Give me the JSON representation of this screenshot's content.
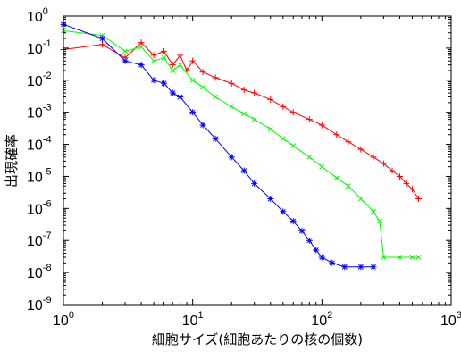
{
  "chart_data": {
    "type": "line",
    "title": "",
    "xlabel": "細胞サイズ(細胞あたりの核の個数)",
    "ylabel": "出現確率",
    "x_scale": "log",
    "y_scale": "log",
    "xlim": [
      1,
      1000
    ],
    "ylim": [
      1e-09,
      1
    ],
    "x_ticks": [
      {
        "value": 1,
        "base": "10",
        "exp": "0"
      },
      {
        "value": 10,
        "base": "10",
        "exp": "1"
      },
      {
        "value": 100,
        "base": "10",
        "exp": "2"
      },
      {
        "value": 1000,
        "base": "10",
        "exp": "3"
      }
    ],
    "y_ticks": [
      {
        "value": 1,
        "base": "10",
        "exp": "0"
      },
      {
        "value": 0.1,
        "base": "10",
        "exp": "-1"
      },
      {
        "value": 0.01,
        "base": "10",
        "exp": "-2"
      },
      {
        "value": 0.001,
        "base": "10",
        "exp": "-3"
      },
      {
        "value": 0.0001,
        "base": "10",
        "exp": "-4"
      },
      {
        "value": 1e-05,
        "base": "10",
        "exp": "-5"
      },
      {
        "value": 1e-06,
        "base": "10",
        "exp": "-6"
      },
      {
        "value": 1e-07,
        "base": "10",
        "exp": "-7"
      },
      {
        "value": 1e-08,
        "base": "10",
        "exp": "-8"
      },
      {
        "value": 1e-09,
        "base": "10",
        "exp": "-9"
      }
    ],
    "grid": false,
    "legend": "none",
    "series": [
      {
        "color": "#ff0000",
        "marker": "plus",
        "points": [
          [
            1,
            0.09
          ],
          [
            2,
            0.13
          ],
          [
            3,
            0.05
          ],
          [
            4,
            0.15
          ],
          [
            5,
            0.06
          ],
          [
            6,
            0.08
          ],
          [
            7,
            0.03
          ],
          [
            8,
            0.06
          ],
          [
            9,
            0.02
          ],
          [
            10,
            0.04
          ],
          [
            12,
            0.018
          ],
          [
            15,
            0.012
          ],
          [
            20,
            0.008
          ],
          [
            25,
            0.005
          ],
          [
            30,
            0.004
          ],
          [
            40,
            0.0025
          ],
          [
            50,
            0.0015
          ],
          [
            60,
            0.001
          ],
          [
            80,
            0.0006
          ],
          [
            100,
            0.0004
          ],
          [
            130,
            0.0002
          ],
          [
            160,
            0.00012
          ],
          [
            200,
            7e-05
          ],
          [
            250,
            4e-05
          ],
          [
            300,
            2.5e-05
          ],
          [
            350,
            1.5e-05
          ],
          [
            400,
            1e-05
          ],
          [
            450,
            6e-06
          ],
          [
            500,
            4e-06
          ],
          [
            560,
            2e-06
          ]
        ]
      },
      {
        "color": "#00ff00",
        "marker": "x",
        "points": [
          [
            1,
            0.35
          ],
          [
            2,
            0.25
          ],
          [
            3,
            0.08
          ],
          [
            4,
            0.11
          ],
          [
            5,
            0.04
          ],
          [
            6,
            0.05
          ],
          [
            7,
            0.02
          ],
          [
            8,
            0.03
          ],
          [
            10,
            0.01
          ],
          [
            12,
            0.006
          ],
          [
            15,
            0.003
          ],
          [
            20,
            0.0015
          ],
          [
            25,
            0.0009
          ],
          [
            30,
            0.0006
          ],
          [
            40,
            0.0003
          ],
          [
            50,
            0.00015
          ],
          [
            60,
            9e-05
          ],
          [
            80,
            4e-05
          ],
          [
            100,
            2e-05
          ],
          [
            130,
            9e-06
          ],
          [
            160,
            5e-06
          ],
          [
            200,
            2e-06
          ],
          [
            250,
            8e-07
          ],
          [
            280,
            4e-07
          ],
          [
            300,
            3e-08
          ],
          [
            400,
            3e-08
          ],
          [
            500,
            3e-08
          ],
          [
            560,
            3e-08
          ]
        ]
      },
      {
        "color": "#0000ff",
        "marker": "star",
        "points": [
          [
            1,
            0.55
          ],
          [
            2,
            0.2
          ],
          [
            3,
            0.04
          ],
          [
            4,
            0.03
          ],
          [
            5,
            0.01
          ],
          [
            6,
            0.008
          ],
          [
            7,
            0.004
          ],
          [
            8,
            0.003
          ],
          [
            10,
            0.001
          ],
          [
            12,
            0.0004
          ],
          [
            15,
            0.00015
          ],
          [
            20,
            4e-05
          ],
          [
            25,
            1.5e-05
          ],
          [
            30,
            6e-06
          ],
          [
            40,
            2e-06
          ],
          [
            50,
            8e-07
          ],
          [
            60,
            4e-07
          ],
          [
            70,
            2e-07
          ],
          [
            80,
            1e-07
          ],
          [
            90,
            5e-08
          ],
          [
            100,
            3e-08
          ],
          [
            120,
            2e-08
          ],
          [
            150,
            1.5e-08
          ],
          [
            200,
            1.5e-08
          ],
          [
            250,
            1.5e-08
          ]
        ]
      }
    ]
  }
}
